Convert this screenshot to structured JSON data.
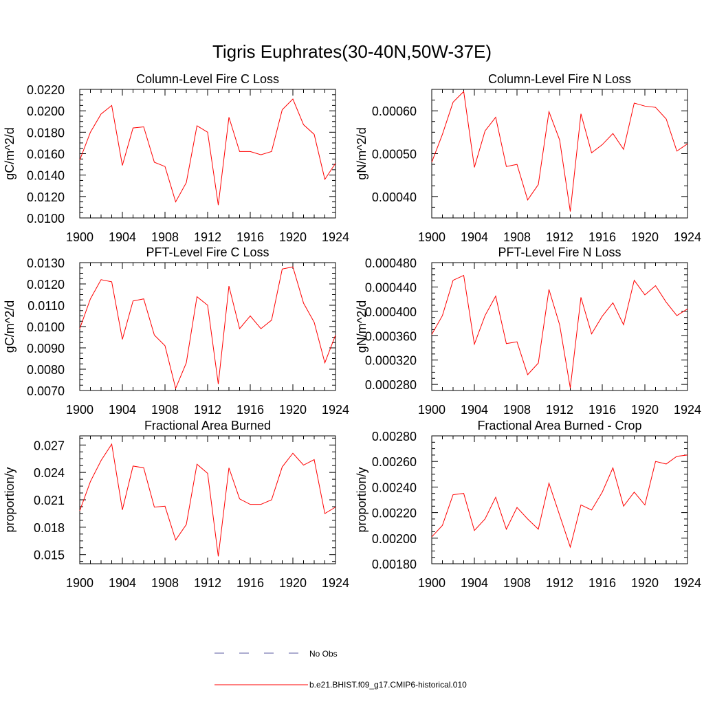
{
  "page_title": "Tigris Euphrates(30-40N,50W-37E)",
  "series_color": "#ff0000",
  "obs_color": "#5a5aa0",
  "legend": {
    "obs_label": "No Obs",
    "model_label": "b.e21.BHIST.f09_g17.CMIP6-historical.010"
  },
  "chart_data": [
    {
      "type": "line",
      "title": "Column-Level Fire C Loss",
      "ylabel": "gC/m^2/d",
      "xlim": [
        1900,
        1924
      ],
      "ylim": [
        0.01,
        0.022
      ],
      "xticks": [
        1900,
        1904,
        1908,
        1912,
        1916,
        1920,
        1924
      ],
      "yticks": [
        "0.0100",
        "0.0120",
        "0.0140",
        "0.0160",
        "0.0180",
        "0.0200",
        "0.0220"
      ],
      "x": [
        1900,
        1901,
        1902,
        1903,
        1904,
        1905,
        1906,
        1907,
        1908,
        1909,
        1910,
        1911,
        1912,
        1913,
        1914,
        1915,
        1916,
        1917,
        1918,
        1919,
        1920,
        1921,
        1922,
        1923,
        1924
      ],
      "values": [
        0.0154,
        0.018,
        0.0197,
        0.0205,
        0.0149,
        0.0184,
        0.0185,
        0.0152,
        0.0148,
        0.0115,
        0.0133,
        0.0186,
        0.018,
        0.0112,
        0.0194,
        0.0162,
        0.0162,
        0.0159,
        0.0162,
        0.0201,
        0.0211,
        0.0187,
        0.0178,
        0.0136,
        0.0151
      ]
    },
    {
      "type": "line",
      "title": "Column-Level Fire N Loss",
      "ylabel": "gN/m^2/d",
      "xlim": [
        1900,
        1924
      ],
      "ylim": [
        0.00035,
        0.00065
      ],
      "xticks": [
        1900,
        1904,
        1908,
        1912,
        1916,
        1920,
        1924
      ],
      "yticks": [
        "0.00040",
        "0.00050",
        "0.00060"
      ],
      "x": [
        1900,
        1901,
        1902,
        1903,
        1904,
        1905,
        1906,
        1907,
        1908,
        1909,
        1910,
        1911,
        1912,
        1913,
        1914,
        1915,
        1916,
        1917,
        1918,
        1919,
        1920,
        1921,
        1922,
        1923,
        1924
      ],
      "values": [
        0.00048,
        0.000545,
        0.00062,
        0.000645,
        0.000468,
        0.000553,
        0.000585,
        0.00047,
        0.000475,
        0.000392,
        0.000428,
        0.000598,
        0.000532,
        0.000365,
        0.000593,
        0.000502,
        0.000521,
        0.000547,
        0.00051,
        0.000618,
        0.000611,
        0.000608,
        0.000581,
        0.000506,
        0.000523
      ]
    },
    {
      "type": "line",
      "title": "PFT-Level Fire C Loss",
      "ylabel": "gC/m^2/d",
      "xlim": [
        1900,
        1924
      ],
      "ylim": [
        0.007,
        0.013
      ],
      "xticks": [
        1900,
        1904,
        1908,
        1912,
        1916,
        1920,
        1924
      ],
      "yticks": [
        "0.0070",
        "0.0080",
        "0.0090",
        "0.0100",
        "0.0110",
        "0.0120",
        "0.0130"
      ],
      "x": [
        1900,
        1901,
        1902,
        1903,
        1904,
        1905,
        1906,
        1907,
        1908,
        1909,
        1910,
        1911,
        1912,
        1913,
        1914,
        1915,
        1916,
        1917,
        1918,
        1919,
        1920,
        1921,
        1922,
        1923,
        1924
      ],
      "values": [
        0.0099,
        0.0113,
        0.0122,
        0.0121,
        0.0094,
        0.0112,
        0.0113,
        0.0096,
        0.0091,
        0.0071,
        0.0083,
        0.0114,
        0.011,
        0.0073,
        0.0119,
        0.0099,
        0.0105,
        0.0099,
        0.0103,
        0.0127,
        0.0128,
        0.0111,
        0.0102,
        0.0083,
        0.0096
      ]
    },
    {
      "type": "line",
      "title": "PFT-Level Fire N Loss",
      "ylabel": "gN/m^2/d",
      "xlim": [
        1900,
        1924
      ],
      "ylim": [
        0.00027,
        0.00048
      ],
      "xticks": [
        1900,
        1904,
        1908,
        1912,
        1916,
        1920,
        1924
      ],
      "yticks": [
        "0.000280",
        "0.000320",
        "0.000360",
        "0.000400",
        "0.000440",
        "0.000480"
      ],
      "x": [
        1900,
        1901,
        1902,
        1903,
        1904,
        1905,
        1906,
        1907,
        1908,
        1909,
        1910,
        1911,
        1912,
        1913,
        1914,
        1915,
        1916,
        1917,
        1918,
        1919,
        1920,
        1921,
        1922,
        1923,
        1924
      ],
      "values": [
        0.000362,
        0.000393,
        0.000451,
        0.000459,
        0.000346,
        0.000393,
        0.000425,
        0.000347,
        0.00035,
        0.000296,
        0.000315,
        0.000436,
        0.000378,
        0.000274,
        0.000423,
        0.000363,
        0.000392,
        0.000414,
        0.000378,
        0.000451,
        0.000427,
        0.000442,
        0.000415,
        0.000393,
        0.000404
      ]
    },
    {
      "type": "line",
      "title": "Fractional Area Burned",
      "ylabel": "proportion/y",
      "xlim": [
        1900,
        1924
      ],
      "ylim": [
        0.014,
        0.028
      ],
      "xticks": [
        1900,
        1904,
        1908,
        1912,
        1916,
        1920,
        1924
      ],
      "yticks": [
        "0.015",
        "0.018",
        "0.021",
        "0.024",
        "0.027"
      ],
      "x": [
        1900,
        1901,
        1902,
        1903,
        1904,
        1905,
        1906,
        1907,
        1908,
        1909,
        1910,
        1911,
        1912,
        1913,
        1914,
        1915,
        1916,
        1917,
        1918,
        1919,
        1920,
        1921,
        1922,
        1923,
        1924
      ],
      "values": [
        0.0198,
        0.023,
        0.0253,
        0.0271,
        0.0199,
        0.0247,
        0.0245,
        0.0202,
        0.0203,
        0.0166,
        0.0183,
        0.0249,
        0.0239,
        0.0148,
        0.0245,
        0.0211,
        0.0205,
        0.0205,
        0.021,
        0.0246,
        0.0261,
        0.0248,
        0.0254,
        0.0195,
        0.0202
      ]
    },
    {
      "type": "line",
      "title": "Fractional Area Burned - Crop",
      "ylabel": "proportion/y",
      "xlim": [
        1900,
        1924
      ],
      "ylim": [
        0.0018,
        0.0028
      ],
      "xticks": [
        1900,
        1904,
        1908,
        1912,
        1916,
        1920,
        1924
      ],
      "yticks": [
        "0.00180",
        "0.00200",
        "0.00220",
        "0.00240",
        "0.00260",
        "0.00280"
      ],
      "x": [
        1900,
        1901,
        1902,
        1903,
        1904,
        1905,
        1906,
        1907,
        1908,
        1909,
        1910,
        1911,
        1912,
        1913,
        1914,
        1915,
        1916,
        1917,
        1918,
        1919,
        1920,
        1921,
        1922,
        1923,
        1924
      ],
      "values": [
        0.00201,
        0.0021,
        0.00234,
        0.00235,
        0.00206,
        0.00215,
        0.00232,
        0.00207,
        0.00224,
        0.00215,
        0.00207,
        0.00243,
        0.00218,
        0.00193,
        0.00226,
        0.00222,
        0.00236,
        0.00255,
        0.00225,
        0.00236,
        0.00226,
        0.0026,
        0.00258,
        0.00264,
        0.00265
      ]
    }
  ]
}
